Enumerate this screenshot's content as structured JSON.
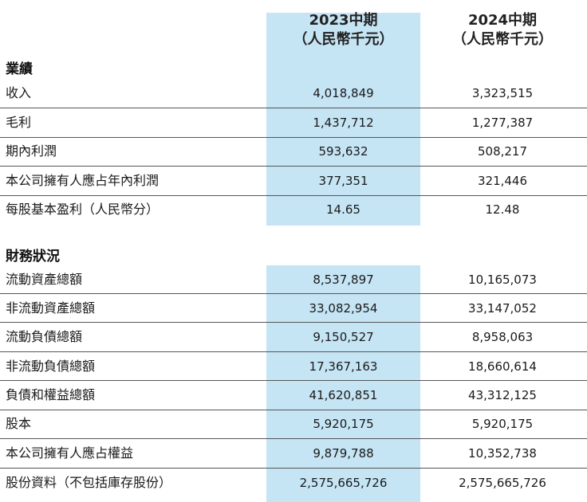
{
  "header": {
    "col1_line1": "2023中期",
    "col1_line2": "（人民幣千元）",
    "col2_line1": "2024中期",
    "col2_line2": "（人民幣千元）"
  },
  "sections": {
    "performance": {
      "title": "業績",
      "rows": [
        {
          "label": "收入",
          "v2023": "4,018,849",
          "v2024": "3,323,515"
        },
        {
          "label": "毛利",
          "v2023": "1,437,712",
          "v2024": "1,277,387"
        },
        {
          "label": "期內利潤",
          "v2023": "593,632",
          "v2024": "508,217"
        },
        {
          "label": "本公司擁有人應占年內利潤",
          "v2023": "377,351",
          "v2024": "321,446"
        },
        {
          "label": "每股基本盈利（人民幣分）",
          "v2023": "14.65",
          "v2024": "12.48"
        }
      ]
    },
    "financial": {
      "title": "財務狀況",
      "rows": [
        {
          "label": "流動資產總額",
          "v2023": "8,537,897",
          "v2024": "10,165,073"
        },
        {
          "label": "非流動資產總額",
          "v2023": "33,082,954",
          "v2024": "33,147,052"
        },
        {
          "label": "流動負債總額",
          "v2023": "9,150,527",
          "v2024": "8,958,063"
        },
        {
          "label": "非流動負債總額",
          "v2023": "17,367,163",
          "v2024": "18,660,614"
        },
        {
          "label": "負債和權益總額",
          "v2023": "41,620,851",
          "v2024": "43,312,125"
        },
        {
          "label": "股本",
          "v2023": "5,920,175",
          "v2024": "5,920,175"
        },
        {
          "label": "本公司擁有人應占權益",
          "v2023": "9,879,788",
          "v2024": "10,352,738"
        },
        {
          "label": "股份資料（不包括庫存股份）",
          "v2023": "2,575,665,726",
          "v2024": "2,575,665,726"
        }
      ]
    }
  }
}
